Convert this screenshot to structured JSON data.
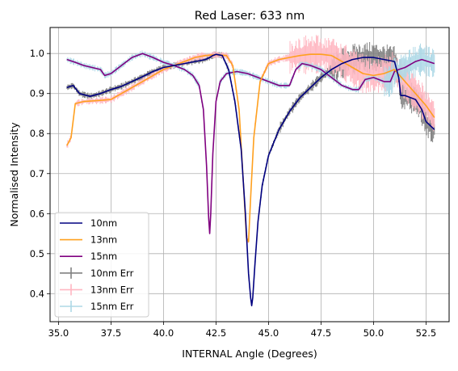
{
  "chart_data": {
    "type": "line",
    "title": "Red Laser: 633 nm",
    "xlabel": "INTERNAL Angle (Degrees)",
    "ylabel": "Normalised Intensity",
    "xlim": [
      34.6,
      53.6
    ],
    "ylim": [
      0.33,
      1.065
    ],
    "xticks": [
      35.0,
      37.5,
      40.0,
      42.5,
      45.0,
      47.5,
      50.0,
      52.5
    ],
    "xtick_labels": [
      "35.0",
      "37.5",
      "40.0",
      "42.5",
      "45.0",
      "47.5",
      "50.0",
      "52.5"
    ],
    "yticks": [
      0.4,
      0.5,
      0.6,
      0.7,
      0.8,
      0.9,
      1.0
    ],
    "ytick_labels": [
      "0.4",
      "0.5",
      "0.6",
      "0.7",
      "0.8",
      "0.9",
      "1.0"
    ],
    "grid": true,
    "legend_position": "lower-left",
    "series": [
      {
        "name": "10nm",
        "color": "#000080",
        "x": [
          35.4,
          35.7,
          36.0,
          36.5,
          37.0,
          37.5,
          38.0,
          38.5,
          39.0,
          39.5,
          40.0,
          40.5,
          41.0,
          41.5,
          42.0,
          42.2,
          42.35,
          42.5,
          42.8,
          43.1,
          43.4,
          43.7,
          43.9,
          44.05,
          44.15,
          44.2,
          44.25,
          44.35,
          44.5,
          44.7,
          45.0,
          45.5,
          46.0,
          46.5,
          47.0,
          47.5,
          48.0,
          48.5,
          49.0,
          49.5,
          50.0,
          50.5,
          51.0,
          51.2,
          51.3,
          51.5,
          52.0,
          52.3,
          52.5,
          52.9
        ],
        "values": [
          0.915,
          0.92,
          0.9,
          0.893,
          0.9,
          0.91,
          0.918,
          0.93,
          0.942,
          0.955,
          0.965,
          0.97,
          0.975,
          0.98,
          0.985,
          0.99,
          0.995,
          0.998,
          0.995,
          0.96,
          0.88,
          0.76,
          0.6,
          0.45,
          0.39,
          0.37,
          0.39,
          0.47,
          0.58,
          0.67,
          0.745,
          0.81,
          0.855,
          0.89,
          0.915,
          0.94,
          0.96,
          0.975,
          0.985,
          0.99,
          0.99,
          0.985,
          0.98,
          0.94,
          0.895,
          0.895,
          0.885,
          0.86,
          0.83,
          0.81
        ]
      },
      {
        "name": "13nm",
        "color": "#ffa01e",
        "x": [
          35.4,
          35.6,
          35.8,
          36.2,
          36.8,
          37.5,
          38.0,
          38.5,
          39.0,
          39.5,
          40.0,
          40.5,
          41.0,
          41.5,
          42.0,
          42.5,
          43.0,
          43.3,
          43.6,
          43.8,
          43.95,
          44.05,
          44.15,
          44.3,
          44.6,
          45.0,
          45.5,
          46.0,
          46.5,
          47.0,
          47.5,
          48.0,
          48.5,
          49.0,
          49.5,
          50.0,
          50.5,
          51.0,
          51.5,
          52.0,
          52.5,
          52.9
        ],
        "values": [
          0.77,
          0.79,
          0.875,
          0.88,
          0.882,
          0.885,
          0.9,
          0.915,
          0.93,
          0.945,
          0.96,
          0.97,
          0.98,
          0.99,
          0.995,
          0.997,
          0.995,
          0.97,
          0.86,
          0.68,
          0.54,
          0.53,
          0.64,
          0.79,
          0.93,
          0.975,
          0.985,
          0.99,
          0.995,
          0.998,
          0.998,
          0.995,
          0.98,
          0.965,
          0.95,
          0.945,
          0.95,
          0.96,
          0.93,
          0.9,
          0.87,
          0.84
        ]
      },
      {
        "name": "15nm",
        "color": "#800080",
        "x": [
          35.4,
          35.8,
          36.2,
          36.6,
          37.0,
          37.2,
          37.5,
          38.0,
          38.5,
          39.0,
          39.5,
          40.0,
          40.5,
          41.0,
          41.4,
          41.7,
          41.9,
          42.05,
          42.15,
          42.2,
          42.25,
          42.35,
          42.5,
          42.7,
          43.0,
          43.5,
          44.0,
          44.5,
          45.0,
          45.5,
          46.0,
          46.3,
          46.6,
          47.0,
          47.5,
          48.0,
          48.5,
          49.0,
          49.3,
          49.6,
          50.0,
          50.5,
          50.8,
          51.0,
          51.2,
          51.5,
          52.0,
          52.3,
          52.6,
          52.9
        ],
        "values": [
          0.985,
          0.978,
          0.97,
          0.965,
          0.96,
          0.945,
          0.95,
          0.97,
          0.99,
          1.0,
          0.99,
          0.978,
          0.97,
          0.96,
          0.945,
          0.92,
          0.86,
          0.72,
          0.59,
          0.55,
          0.6,
          0.75,
          0.88,
          0.93,
          0.95,
          0.955,
          0.95,
          0.94,
          0.93,
          0.92,
          0.92,
          0.96,
          0.975,
          0.97,
          0.96,
          0.94,
          0.92,
          0.91,
          0.91,
          0.935,
          0.94,
          0.93,
          0.93,
          0.955,
          0.96,
          0.965,
          0.98,
          0.985,
          0.98,
          0.975
        ]
      }
    ],
    "error_series": [
      {
        "name": "10nm Err",
        "color": "#808080"
      },
      {
        "name": "13nm Err",
        "color": "#ffb6c1"
      },
      {
        "name": "15nm Err",
        "color": "#add8e6"
      }
    ]
  }
}
